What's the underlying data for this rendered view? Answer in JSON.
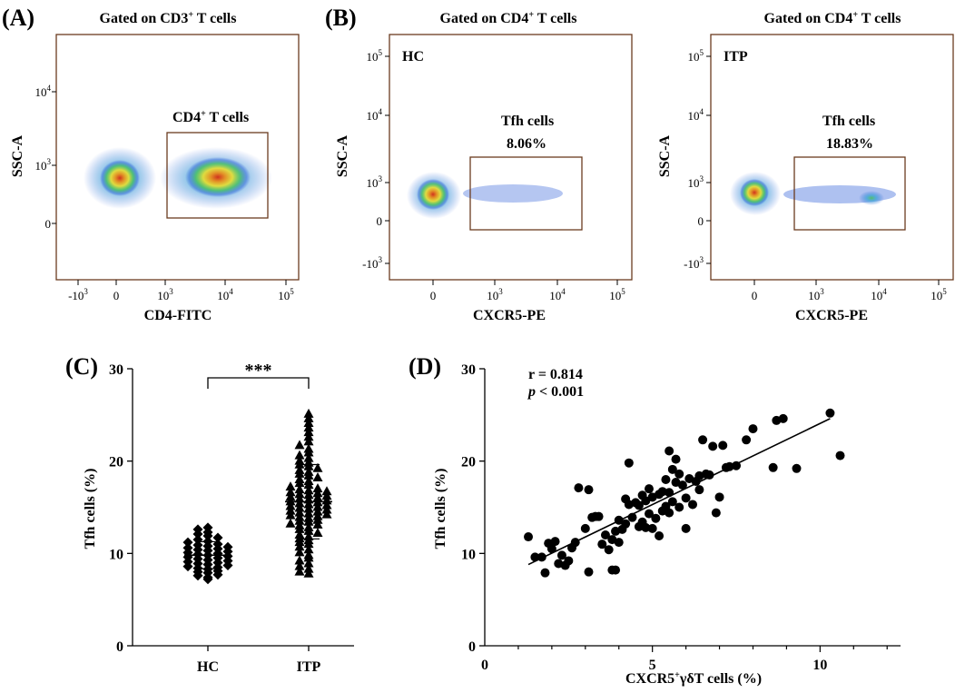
{
  "panels": {
    "A": {
      "label": "(A)",
      "title_pre": "Gated on CD3",
      "title_sup": "+",
      "title_post": " T cells",
      "gate_pre": "CD4",
      "gate_sup": "+",
      "gate_post": " T cells",
      "ylabel": "SSC-A",
      "xlabel": "CD4-FITC",
      "yticks": [
        {
          "base": "10",
          "exp": "4"
        },
        {
          "base": "10",
          "exp": "3"
        },
        {
          "base": "0",
          "exp": ""
        }
      ],
      "xticks": [
        {
          "base": "-10",
          "exp": "3"
        },
        {
          "base": "0",
          "exp": ""
        },
        {
          "base": "10",
          "exp": "3"
        },
        {
          "base": "10",
          "exp": "4"
        },
        {
          "base": "10",
          "exp": "5"
        }
      ]
    },
    "B": {
      "label": "(B)",
      "title_pre": "Gated on CD4",
      "title_sup": "+",
      "title_post": " T cells",
      "ylabel": "SSC-A",
      "xlabel": "CXCR5-PE",
      "yticks": [
        {
          "base": "10",
          "exp": "5"
        },
        {
          "base": "10",
          "exp": "4"
        },
        {
          "base": "10",
          "exp": "3"
        },
        {
          "base": "0",
          "exp": ""
        },
        {
          "base": "-10",
          "exp": "3"
        }
      ],
      "xticks": [
        {
          "base": "0",
          "exp": ""
        },
        {
          "base": "10",
          "exp": "3"
        },
        {
          "base": "10",
          "exp": "4"
        },
        {
          "base": "10",
          "exp": "5"
        }
      ],
      "subplots": [
        {
          "group": "HC",
          "gate_name": "Tfh cells",
          "gate_value": "8.06%"
        },
        {
          "group": "ITP",
          "gate_name": "Tfh cells",
          "gate_value": "18.83%"
        }
      ]
    },
    "C": {
      "label": "(C)"
    },
    "D": {
      "label": "(D)"
    }
  },
  "chart_data": [
    {
      "type": "scatter",
      "panel": "C",
      "title": "",
      "xlabel": "",
      "ylabel": "Tfh cells (%)",
      "ylim": [
        0,
        30
      ],
      "yticks": [
        0,
        10,
        20,
        30
      ],
      "categories": [
        "HC",
        "ITP"
      ],
      "significance": "***",
      "series": [
        {
          "name": "HC",
          "marker": "diamond",
          "values": [
            7.2,
            7.4,
            7.6,
            7.7,
            7.9,
            8.0,
            8.1,
            8.3,
            8.4,
            8.5,
            8.6,
            8.7,
            8.8,
            8.9,
            9.0,
            9.1,
            9.2,
            9.3,
            9.4,
            9.5,
            9.6,
            9.7,
            9.8,
            9.9,
            10.0,
            10.1,
            10.2,
            10.3,
            10.4,
            10.5,
            10.6,
            10.7,
            10.8,
            10.9,
            11.0,
            11.2,
            11.3,
            11.5,
            11.7,
            11.9,
            12.1,
            12.3,
            12.6,
            12.8
          ]
        },
        {
          "name": "ITP",
          "marker": "triangle",
          "values": [
            7.8,
            8.0,
            8.3,
            8.6,
            8.9,
            9.2,
            9.5,
            9.8,
            10.1,
            10.4,
            10.7,
            11.0,
            11.2,
            11.4,
            11.6,
            11.8,
            12.0,
            12.2,
            12.4,
            12.6,
            12.8,
            13.0,
            13.1,
            13.2,
            13.4,
            13.5,
            13.6,
            13.8,
            13.9,
            14.0,
            14.1,
            14.2,
            14.3,
            14.4,
            14.5,
            14.6,
            14.7,
            14.8,
            14.9,
            15.0,
            15.1,
            15.2,
            15.3,
            15.4,
            15.5,
            15.6,
            15.7,
            15.8,
            15.9,
            16.0,
            16.1,
            16.2,
            16.3,
            16.4,
            16.5,
            16.6,
            16.7,
            16.8,
            16.9,
            17.0,
            17.2,
            17.4,
            17.6,
            17.8,
            18.0,
            18.2,
            18.4,
            18.6,
            18.8,
            19.0,
            19.2,
            19.4,
            19.6,
            19.8,
            20.0,
            20.3,
            20.6,
            20.9,
            21.3,
            21.7,
            22.1,
            22.6,
            23.1,
            23.6,
            24.1,
            24.6,
            25.1
          ]
        }
      ]
    },
    {
      "type": "scatter",
      "panel": "D",
      "title": "",
      "xlabel_pre": "CXCR5",
      "xlabel_sup": "+",
      "xlabel_post": "γδT cells (%)",
      "ylabel": "Tfh cells (%)",
      "xlim": [
        0,
        12.4
      ],
      "ylim": [
        0,
        30
      ],
      "xticks": [
        0,
        5,
        10
      ],
      "yticks": [
        0,
        10,
        20,
        30
      ],
      "annotation_r": "r = 0.814",
      "annotation_p_italic": "p",
      "annotation_p_rest": " < 0.001",
      "fit_line": {
        "x": [
          1.3,
          10.3
        ],
        "y": [
          8.8,
          24.6
        ]
      },
      "points": [
        [
          1.3,
          11.8
        ],
        [
          1.5,
          9.6
        ],
        [
          1.7,
          9.6
        ],
        [
          1.8,
          7.9
        ],
        [
          1.9,
          11.1
        ],
        [
          2.0,
          10.5
        ],
        [
          2.1,
          11.3
        ],
        [
          2.2,
          8.9
        ],
        [
          2.3,
          9.8
        ],
        [
          2.4,
          8.7
        ],
        [
          2.5,
          9.2
        ],
        [
          2.6,
          10.6
        ],
        [
          2.7,
          11.2
        ],
        [
          2.8,
          17.1
        ],
        [
          3.0,
          12.7
        ],
        [
          3.1,
          16.9
        ],
        [
          3.1,
          8.0
        ],
        [
          3.2,
          13.9
        ],
        [
          3.3,
          14.0
        ],
        [
          3.4,
          14.0
        ],
        [
          3.5,
          11.0
        ],
        [
          3.6,
          12.0
        ],
        [
          3.7,
          10.4
        ],
        [
          3.8,
          11.5
        ],
        [
          3.8,
          8.2
        ],
        [
          3.9,
          12.4
        ],
        [
          3.9,
          8.2
        ],
        [
          4.0,
          13.6
        ],
        [
          4.0,
          11.2
        ],
        [
          4.1,
          12.6
        ],
        [
          4.2,
          15.9
        ],
        [
          4.2,
          13.2
        ],
        [
          4.3,
          19.8
        ],
        [
          4.3,
          15.3
        ],
        [
          4.4,
          13.9
        ],
        [
          4.5,
          15.5
        ],
        [
          4.6,
          15.2
        ],
        [
          4.6,
          12.9
        ],
        [
          4.7,
          16.3
        ],
        [
          4.7,
          13.4
        ],
        [
          4.8,
          15.7
        ],
        [
          4.8,
          12.8
        ],
        [
          4.9,
          17.0
        ],
        [
          4.9,
          14.3
        ],
        [
          5.0,
          16.1
        ],
        [
          5.0,
          12.7
        ],
        [
          5.1,
          13.8
        ],
        [
          5.2,
          16.4
        ],
        [
          5.2,
          11.9
        ],
        [
          5.3,
          16.7
        ],
        [
          5.3,
          14.6
        ],
        [
          5.4,
          18.0
        ],
        [
          5.4,
          15.1
        ],
        [
          5.5,
          21.1
        ],
        [
          5.5,
          16.6
        ],
        [
          5.5,
          14.4
        ],
        [
          5.6,
          19.1
        ],
        [
          5.6,
          15.6
        ],
        [
          5.7,
          20.2
        ],
        [
          5.7,
          17.7
        ],
        [
          5.8,
          18.6
        ],
        [
          5.8,
          15.0
        ],
        [
          5.9,
          17.4
        ],
        [
          6.0,
          16.0
        ],
        [
          6.0,
          12.7
        ],
        [
          6.1,
          18.1
        ],
        [
          6.2,
          15.3
        ],
        [
          6.3,
          17.8
        ],
        [
          6.4,
          18.4
        ],
        [
          6.4,
          16.9
        ],
        [
          6.5,
          22.3
        ],
        [
          6.6,
          18.6
        ],
        [
          6.7,
          18.5
        ],
        [
          6.8,
          21.6
        ],
        [
          6.9,
          14.4
        ],
        [
          7.0,
          16.1
        ],
        [
          7.1,
          21.7
        ],
        [
          7.2,
          19.3
        ],
        [
          7.3,
          19.4
        ],
        [
          7.5,
          19.5
        ],
        [
          7.8,
          22.3
        ],
        [
          8.0,
          23.5
        ],
        [
          8.6,
          19.3
        ],
        [
          8.7,
          24.4
        ],
        [
          8.9,
          24.6
        ],
        [
          9.3,
          19.2
        ],
        [
          10.3,
          25.2
        ],
        [
          10.6,
          20.6
        ]
      ]
    }
  ]
}
